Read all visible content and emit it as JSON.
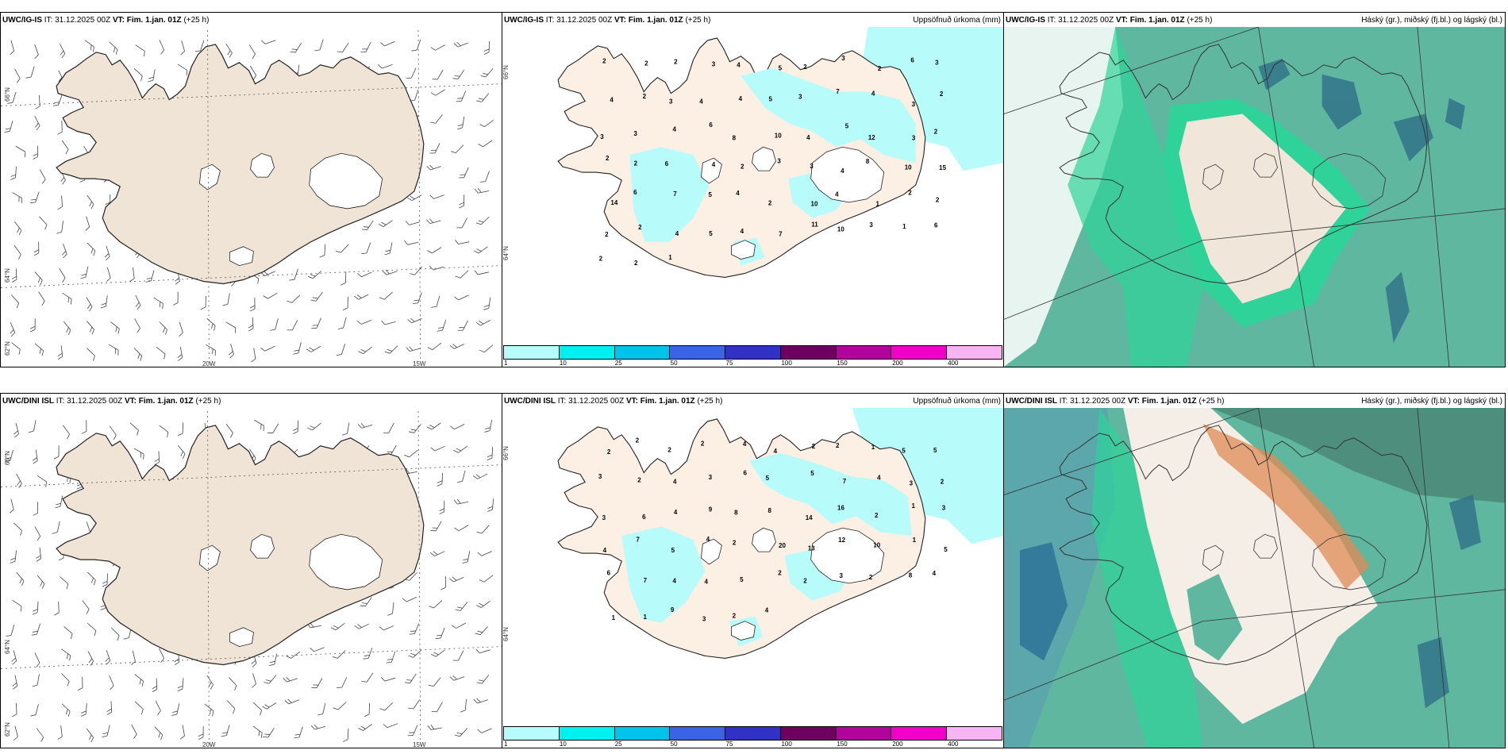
{
  "panels": {
    "p1": {
      "model": "UWC/IG-IS",
      "it": "IT: 31.12.2025 00Z",
      "vt": "VT: Fim. 1.jan. 01Z",
      "lead": "(+25 h)",
      "lat1": "66°N",
      "lat2": "64°N",
      "lat3": "62°N",
      "lon1": "20W",
      "lon2": "15W"
    },
    "p2": {
      "model": "UWC/IG-IS",
      "it": "IT: 31.12.2025 00Z",
      "vt": "VT: Fim. 1.jan. 01Z",
      "lead": "(+25 h)",
      "right": "Uppsöfnuð úrkoma (mm)",
      "lat1": "66°N",
      "lat2": "64°N"
    },
    "p3": {
      "model": "UWC/IG-IS",
      "it": "IT: 31.12.2025 00Z",
      "vt": "VT: Fim. 1.jan. 01Z",
      "lead": "(+25 h)",
      "right": "Háský (gr.), miðský (fj.bl.) og lágský (bl.)"
    },
    "p4": {
      "model": "UWC/DINI ISL",
      "it": "IT: 31.12.2025 00Z",
      "vt": "VT: Fim. 1.jan. 01Z",
      "lead": "(+25 h)",
      "lat1": "66°N",
      "lat2": "64°N",
      "lat3": "62°N",
      "lon1": "20W",
      "lon2": "15W"
    },
    "p5": {
      "model": "UWC/DINI ISL",
      "it": "IT: 31.12.2025 00Z",
      "vt": "VT: Fim. 1.jan. 01Z",
      "lead": "(+25 h)",
      "right": "Uppsöfnuð úrkoma (mm)",
      "lat1": "66°N",
      "lat2": "64°N"
    },
    "p6": {
      "model": "UWC/DINI ISL",
      "it": "IT: 31.12.2025 00Z",
      "vt": "VT: Fim. 1.jan. 01Z",
      "lead": "(+25 h)",
      "right": "Háský (gr.), miðský (fj.bl.) og lágský (bl.)"
    }
  },
  "colorbar": {
    "ticks": [
      "1",
      "10",
      "25",
      "50",
      "75",
      "100",
      "150",
      "200",
      "400"
    ],
    "colors": [
      "#b7fbfb",
      "#00f0f0",
      "#00c3ec",
      "#3b63e6",
      "#3231c6",
      "#6e0060",
      "#b0049c",
      "#f000c8",
      "#f7b4f3"
    ]
  },
  "precip_labels": {
    "p2": [
      {
        "v": "2"
      },
      {
        "v": "2"
      },
      {
        "v": "2"
      },
      {
        "v": "3"
      },
      {
        "v": "4"
      },
      {
        "v": "5"
      },
      {
        "v": "2"
      },
      {
        "v": "3"
      },
      {
        "v": "2"
      },
      {
        "v": "6"
      },
      {
        "v": "3"
      },
      {
        "v": "4"
      },
      {
        "v": "2"
      },
      {
        "v": "3"
      },
      {
        "v": "4"
      },
      {
        "v": "4"
      },
      {
        "v": "5"
      },
      {
        "v": "3"
      },
      {
        "v": "7"
      },
      {
        "v": "4"
      },
      {
        "v": "3"
      },
      {
        "v": "2"
      },
      {
        "v": "3"
      },
      {
        "v": "3"
      },
      {
        "v": "4"
      },
      {
        "v": "6"
      },
      {
        "v": "8"
      },
      {
        "v": "10"
      },
      {
        "v": "4"
      },
      {
        "v": "5"
      },
      {
        "v": "12"
      },
      {
        "v": "3"
      },
      {
        "v": "2"
      },
      {
        "v": "2"
      },
      {
        "v": "2"
      },
      {
        "v": "6"
      },
      {
        "v": "4"
      },
      {
        "v": "2"
      },
      {
        "v": "3"
      },
      {
        "v": "3"
      },
      {
        "v": "4"
      },
      {
        "v": "8"
      },
      {
        "v": "10"
      },
      {
        "v": "15"
      },
      {
        "v": "14"
      },
      {
        "v": "6"
      },
      {
        "v": "7"
      },
      {
        "v": "5"
      },
      {
        "v": "4"
      },
      {
        "v": "2"
      },
      {
        "v": "10"
      },
      {
        "v": "4"
      },
      {
        "v": "1"
      },
      {
        "v": "2"
      },
      {
        "v": "2"
      },
      {
        "v": "2"
      },
      {
        "v": "2"
      },
      {
        "v": "4"
      },
      {
        "v": "5"
      },
      {
        "v": "4"
      },
      {
        "v": "7"
      },
      {
        "v": "11"
      },
      {
        "v": "10"
      },
      {
        "v": "3"
      },
      {
        "v": "1"
      },
      {
        "v": "6"
      },
      {
        "v": "2"
      },
      {
        "v": "2"
      },
      {
        "v": "1"
      }
    ],
    "p5": [
      {
        "v": "2"
      },
      {
        "v": "2"
      },
      {
        "v": "2"
      },
      {
        "v": "2"
      },
      {
        "v": "4"
      },
      {
        "v": "4"
      },
      {
        "v": "2"
      },
      {
        "v": "2"
      },
      {
        "v": "1"
      },
      {
        "v": "5"
      },
      {
        "v": "5"
      },
      {
        "v": "3"
      },
      {
        "v": "2"
      },
      {
        "v": "4"
      },
      {
        "v": "3"
      },
      {
        "v": "6"
      },
      {
        "v": "5"
      },
      {
        "v": "5"
      },
      {
        "v": "7"
      },
      {
        "v": "4"
      },
      {
        "v": "3"
      },
      {
        "v": "2"
      },
      {
        "v": "3"
      },
      {
        "v": "6"
      },
      {
        "v": "4"
      },
      {
        "v": "9"
      },
      {
        "v": "8"
      },
      {
        "v": "8"
      },
      {
        "v": "14"
      },
      {
        "v": "16"
      },
      {
        "v": "2"
      },
      {
        "v": "1"
      },
      {
        "v": "3"
      },
      {
        "v": "4"
      },
      {
        "v": "7"
      },
      {
        "v": "5"
      },
      {
        "v": "4"
      },
      {
        "v": "2"
      },
      {
        "v": "20"
      },
      {
        "v": "13"
      },
      {
        "v": "12"
      },
      {
        "v": "10"
      },
      {
        "v": "1"
      },
      {
        "v": "5"
      },
      {
        "v": "6"
      },
      {
        "v": "7"
      },
      {
        "v": "4"
      },
      {
        "v": "4"
      },
      {
        "v": "5"
      },
      {
        "v": "2"
      },
      {
        "v": "2"
      },
      {
        "v": "3"
      },
      {
        "v": "2"
      },
      {
        "v": "8"
      },
      {
        "v": "4"
      },
      {
        "v": "1"
      },
      {
        "v": "1"
      },
      {
        "v": "9"
      },
      {
        "v": "3"
      },
      {
        "v": "2"
      },
      {
        "v": "4"
      }
    ]
  }
}
